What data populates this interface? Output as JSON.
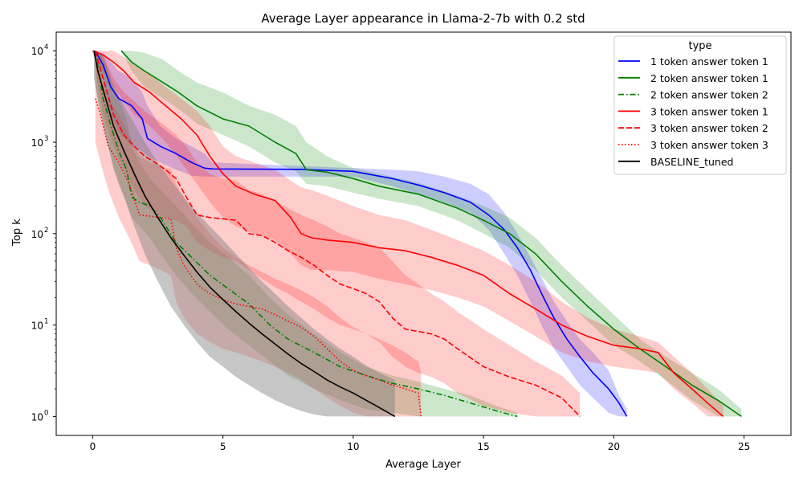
{
  "chart_data": {
    "type": "line",
    "title": "Average Layer appearance in Llama-2-7b with 0.2 std",
    "xlabel": "Average Layer",
    "ylabel": "Top k",
    "xlim": [
      -1.4,
      26.8
    ],
    "ylim": [
      0.62,
      16000
    ],
    "yscale": "log",
    "xticks": [
      0,
      5,
      10,
      15,
      20,
      25
    ],
    "yticks": [
      1,
      10,
      100,
      1000,
      10000
    ],
    "ytick_labels": [
      "10",
      "10",
      "10",
      "10",
      "10"
    ],
    "ytick_exponents": [
      "0",
      "1",
      "2",
      "3",
      "4"
    ],
    "grid": false,
    "legend": {
      "title": "type",
      "placement": "top-right"
    },
    "series": [
      {
        "name": "1 token answer token 1",
        "color": "#0000ff",
        "dash": "solid",
        "x": [
          0.1,
          0.4,
          0.7,
          1.0,
          1.5,
          1.9,
          2.1,
          2.6,
          3.2,
          3.8,
          4.3,
          4.6,
          8.0,
          10.0,
          11.5,
          12.5,
          13.5,
          14.5,
          15.2,
          15.8,
          16.3,
          16.8,
          17.3,
          17.7,
          18.2,
          18.7,
          19.2,
          19.8,
          20.2,
          20.5
        ],
        "y": [
          10000,
          7000,
          4000,
          3000,
          2500,
          1800,
          1100,
          900,
          750,
          600,
          520,
          510,
          505,
          480,
          400,
          340,
          280,
          220,
          160,
          110,
          70,
          40,
          20,
          12,
          7,
          4.5,
          3,
          2,
          1.4,
          1
        ],
        "band_upper": [
          10000,
          9500,
          7500,
          6000,
          5000,
          3500,
          2500,
          1500,
          1100,
          900,
          750,
          600,
          550,
          520,
          500,
          480,
          420,
          350,
          270,
          170,
          100,
          55,
          30,
          18,
          11,
          7,
          5,
          3.2,
          1.7,
          1.2
        ],
        "band_lower": [
          9000,
          5000,
          2000,
          1300,
          900,
          800,
          700,
          600,
          500,
          430,
          420,
          420,
          420,
          420,
          330,
          270,
          220,
          170,
          110,
          60,
          35,
          18,
          9,
          5.5,
          3.5,
          2.2,
          1.6,
          1.1,
          1,
          1
        ]
      },
      {
        "name": "2 token answer token 1",
        "color": "#008000",
        "dash": "solid",
        "x": [
          1.1,
          1.5,
          2.0,
          2.7,
          3.3,
          4.0,
          5.0,
          6.0,
          7.0,
          7.8,
          8.2,
          9.0,
          10.0,
          11.0,
          12.5,
          14.0,
          15.0,
          16.0,
          17.0,
          18.0,
          19.0,
          20.0,
          21.0,
          22.0,
          23.0,
          24.0,
          24.9
        ],
        "y": [
          10000,
          7500,
          6000,
          4500,
          3500,
          2500,
          1800,
          1500,
          1000,
          750,
          500,
          470,
          400,
          330,
          270,
          190,
          140,
          100,
          60,
          30,
          16,
          9,
          5.5,
          3.5,
          2.2,
          1.5,
          1
        ],
        "band_upper": [
          10000,
          10000,
          9500,
          8000,
          6000,
          4500,
          3500,
          2500,
          2000,
          1500,
          1000,
          700,
          520,
          450,
          360,
          260,
          200,
          150,
          90,
          45,
          24,
          13,
          7,
          4.5,
          3,
          2,
          1.2
        ],
        "band_lower": [
          10000,
          6000,
          4000,
          3000,
          2300,
          1600,
          1200,
          900,
          600,
          480,
          350,
          330,
          280,
          240,
          200,
          140,
          100,
          70,
          40,
          20,
          11,
          6,
          4,
          2.5,
          1.5,
          1,
          1
        ]
      },
      {
        "name": "2 token answer token 2",
        "color": "#008000",
        "dash": "dashdot",
        "x": [
          0.1,
          0.4,
          0.7,
          1.0,
          1.3,
          1.5,
          1.8,
          2.2,
          2.6,
          3.2,
          3.8,
          4.5,
          5.2,
          6.0,
          6.8,
          7.5,
          8.5,
          9.5,
          10.5,
          11.5,
          12.5,
          13.5,
          14.5,
          15.5,
          16.3
        ],
        "y": [
          10000,
          3000,
          1500,
          800,
          500,
          250,
          220,
          200,
          150,
          80,
          55,
          35,
          25,
          17,
          10,
          7,
          5,
          3.5,
          2.8,
          2.3,
          2,
          1.7,
          1.4,
          1.15,
          1
        ],
        "band_upper": [
          10000,
          9000,
          5000,
          3000,
          1800,
          900,
          600,
          400,
          300,
          200,
          130,
          80,
          55,
          35,
          20,
          13,
          8,
          5,
          3.5,
          2.8,
          2.4,
          2,
          1.7,
          1.3,
          1.1
        ],
        "band_lower": [
          4000,
          1500,
          700,
          350,
          220,
          150,
          120,
          90,
          60,
          35,
          22,
          14,
          9,
          6,
          4,
          2.8,
          2,
          1.5,
          1.2,
          1.1,
          1,
          1,
          1,
          1,
          1
        ]
      },
      {
        "name": "3 token answer token 1",
        "color": "#ff0000",
        "dash": "solid",
        "x": [
          0.0,
          0.4,
          0.8,
          1.2,
          1.6,
          2.2,
          2.8,
          3.4,
          4.0,
          4.5,
          5.0,
          5.5,
          6.2,
          7.0,
          7.6,
          8.0,
          8.4,
          9.0,
          10.0,
          11.0,
          12.0,
          13.0,
          14.0,
          15.0,
          16.0,
          17.0,
          18.0,
          19.0,
          20.0,
          21.0,
          21.7,
          22.3,
          23.0,
          23.6,
          24.2
        ],
        "y": [
          10000,
          9000,
          7500,
          6000,
          4500,
          3500,
          2500,
          1800,
          1200,
          700,
          450,
          330,
          270,
          230,
          150,
          100,
          90,
          85,
          80,
          70,
          65,
          55,
          45,
          35,
          22,
          15,
          10,
          7.5,
          6,
          5.5,
          5,
          3,
          2,
          1.4,
          1
        ],
        "band_upper": [
          10000,
          10000,
          10000,
          8500,
          7000,
          5500,
          4000,
          3000,
          2200,
          1500,
          900,
          700,
          600,
          500,
          380,
          320,
          300,
          260,
          200,
          160,
          140,
          110,
          85,
          65,
          45,
          30,
          18,
          12,
          9,
          7.5,
          6.5,
          4.5,
          3,
          2,
          1.3
        ],
        "band_lower": [
          9000,
          6000,
          4000,
          2800,
          2000,
          1500,
          1000,
          600,
          350,
          220,
          150,
          120,
          100,
          85,
          60,
          45,
          40,
          40,
          38,
          32,
          28,
          24,
          20,
          16,
          11,
          7.5,
          5,
          4,
          3.5,
          3.2,
          3,
          2,
          1.4,
          1,
          1
        ]
      },
      {
        "name": "3 token answer token 2",
        "color": "#ff0000",
        "dash": "dashed",
        "x": [
          0.1,
          0.4,
          0.8,
          1.2,
          1.6,
          2.0,
          2.4,
          2.8,
          3.2,
          3.6,
          4.0,
          4.5,
          5.0,
          5.5,
          6.0,
          6.5,
          7.0,
          7.5,
          8.0,
          8.5,
          9.0,
          9.5,
          10.0,
          10.5,
          11.0,
          11.5,
          12.0,
          12.5,
          13.0,
          13.5,
          14.0,
          15.0,
          16.0,
          17.0,
          18.0,
          18.7
        ],
        "y": [
          10000,
          5000,
          2000,
          1200,
          900,
          700,
          600,
          500,
          400,
          250,
          160,
          150,
          145,
          140,
          100,
          95,
          80,
          65,
          55,
          45,
          35,
          28,
          25,
          22,
          18,
          12,
          9,
          8.5,
          8,
          7,
          5.5,
          3.5,
          2.7,
          2.2,
          1.6,
          1
        ],
        "band_upper": [
          10000,
          9000,
          5000,
          3500,
          2800,
          2200,
          1800,
          1500,
          1200,
          900,
          600,
          450,
          400,
          380,
          300,
          270,
          230,
          190,
          160,
          140,
          120,
          100,
          90,
          80,
          70,
          50,
          35,
          28,
          22,
          18,
          14,
          9,
          6,
          4,
          2.8,
          1.8
        ],
        "band_lower": [
          6000,
          2000,
          900,
          500,
          300,
          200,
          170,
          150,
          140,
          120,
          80,
          65,
          55,
          50,
          40,
          32,
          26,
          22,
          18,
          15,
          12,
          10,
          9,
          8,
          6.5,
          4.5,
          3.5,
          3,
          2.7,
          2.3,
          1.8,
          1.3,
          1.1,
          1,
          1,
          1
        ]
      },
      {
        "name": "3 token answer token 3",
        "color": "#ff0000",
        "dash": "dotted",
        "x": [
          0.1,
          0.3,
          0.6,
          1.0,
          1.4,
          1.8,
          2.2,
          2.6,
          3.0,
          3.2,
          3.5,
          4.0,
          4.5,
          5.0,
          5.5,
          6.0,
          6.5,
          7.0,
          7.5,
          8.0,
          8.5,
          9.0,
          9.5,
          10.0,
          10.5,
          11.0,
          11.5,
          12.0,
          12.5,
          12.6
        ],
        "y": [
          3000,
          2000,
          900,
          600,
          350,
          160,
          155,
          150,
          145,
          70,
          45,
          28,
          22,
          19,
          17,
          16,
          15,
          13,
          11,
          9.5,
          7.5,
          5.5,
          4,
          3.2,
          2.8,
          2.5,
          2.2,
          2,
          1.8,
          1
        ],
        "band_upper": [
          9500,
          6000,
          3000,
          2000,
          1200,
          700,
          600,
          550,
          500,
          350,
          250,
          150,
          100,
          70,
          55,
          45,
          38,
          32,
          28,
          24,
          20,
          16,
          12,
          9.5,
          8,
          7,
          6,
          5,
          4,
          3
        ],
        "band_lower": [
          1000,
          600,
          300,
          150,
          90,
          50,
          45,
          40,
          35,
          18,
          12,
          8,
          6.5,
          5.5,
          5,
          4.5,
          4,
          3.5,
          3,
          2.5,
          2,
          1.6,
          1.3,
          1.1,
          1,
          1,
          1,
          1,
          1,
          1
        ]
      },
      {
        "name": "BASELINE_tuned",
        "color": "#000000",
        "dash": "solid",
        "x": [
          0.05,
          0.2,
          0.5,
          0.8,
          1.2,
          1.6,
          2.0,
          2.5,
          3.0,
          3.5,
          4.0,
          4.5,
          5.0,
          5.5,
          6.0,
          6.5,
          7.0,
          7.5,
          8.0,
          8.5,
          9.0,
          9.5,
          10.0,
          10.5,
          11.0,
          11.6
        ],
        "y": [
          10000,
          6000,
          3000,
          1500,
          800,
          450,
          260,
          150,
          90,
          58,
          38,
          26,
          19,
          14,
          10.5,
          8,
          6.2,
          4.8,
          3.8,
          3.1,
          2.5,
          2.1,
          1.8,
          1.5,
          1.25,
          1
        ],
        "band_upper": [
          10000,
          10000,
          7000,
          4000,
          2500,
          1600,
          1000,
          600,
          380,
          250,
          170,
          120,
          85,
          60,
          42,
          30,
          22,
          16,
          12,
          9,
          7,
          5.5,
          4.5,
          3.6,
          3,
          2.5
        ],
        "band_lower": [
          5000,
          3000,
          1200,
          500,
          250,
          120,
          60,
          30,
          16,
          10,
          6.5,
          4.5,
          3.5,
          2.7,
          2.2,
          1.8,
          1.5,
          1.3,
          1.15,
          1.05,
          1,
          1,
          1,
          1,
          1,
          1
        ]
      }
    ]
  }
}
